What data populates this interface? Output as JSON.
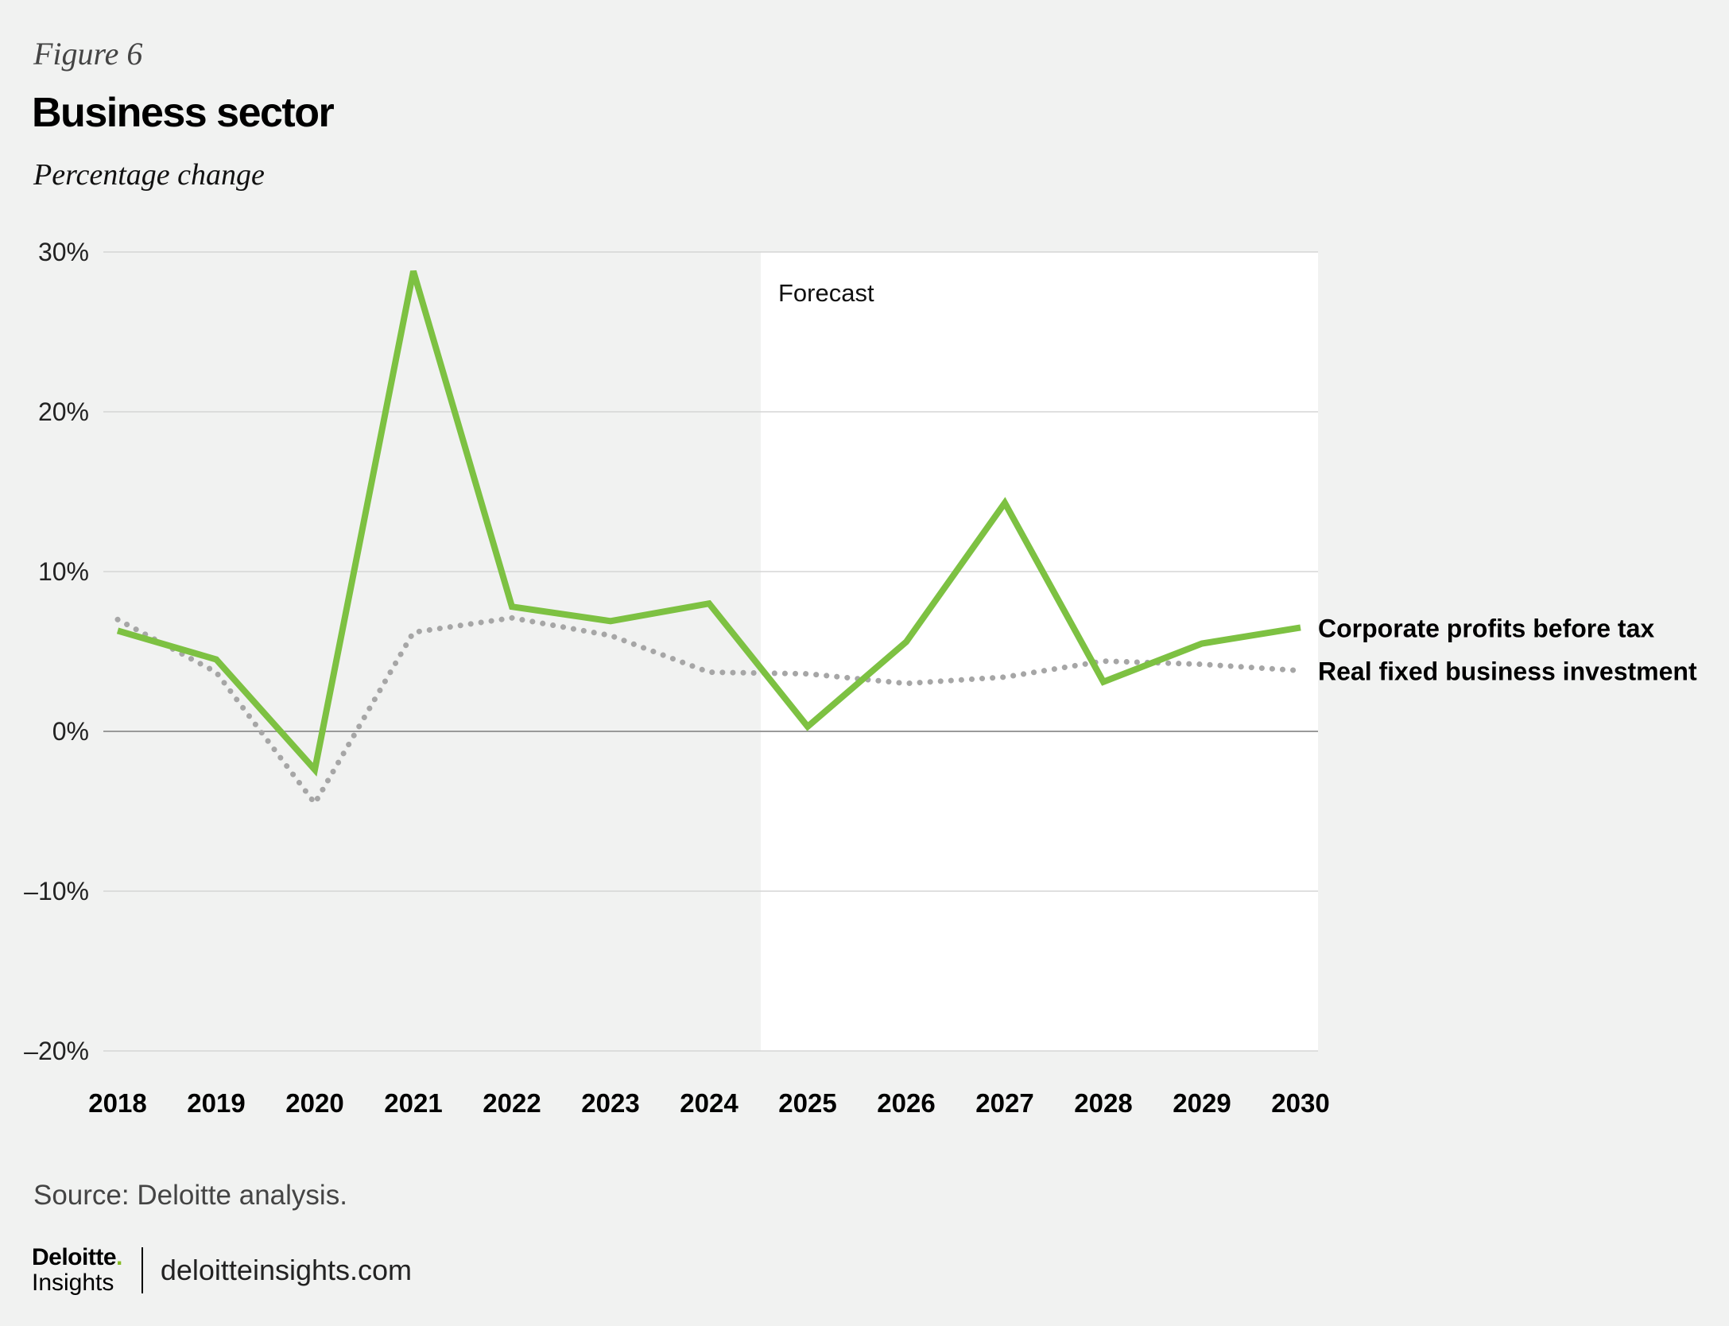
{
  "figure_label": "Figure 6",
  "title": "Business sector",
  "subtitle": "Percentage change",
  "source": "Source: Deloitte analysis.",
  "brand": {
    "logo_word": "Deloitte",
    "logo_dot": ".",
    "logo_sub": "Insights",
    "url": "deloitteinsights.com"
  },
  "colors": {
    "profits": "#7dc142",
    "investment": "#a6a6a6",
    "grid": "#d6d6d6",
    "zero": "#9a9a9a",
    "forecast_bg": "#ffffff"
  },
  "chart_data": {
    "type": "line",
    "title": "Business sector",
    "subtitle": "Percentage change",
    "xlabel": "",
    "ylabel": "",
    "categories": [
      "2018",
      "2019",
      "2020",
      "2021",
      "2022",
      "2023",
      "2024",
      "2025",
      "2026",
      "2027",
      "2028",
      "2029",
      "2030"
    ],
    "ylim": [
      -20,
      30
    ],
    "yticks": [
      30,
      20,
      10,
      0,
      -10,
      -20
    ],
    "ytick_labels": [
      "30%",
      "20%",
      "10%",
      "0%",
      "–10%",
      "–20%"
    ],
    "forecast": {
      "label": "Forecast",
      "start": "2025"
    },
    "series": [
      {
        "name": "Corporate profits before tax",
        "style": "solid",
        "values": [
          6.3,
          4.5,
          -2.4,
          28.8,
          7.8,
          6.9,
          8.0,
          0.3,
          5.6,
          14.3,
          3.1,
          5.5,
          6.5
        ]
      },
      {
        "name": "Real fixed business investment",
        "style": "dotted",
        "values": [
          7.0,
          3.7,
          -4.5,
          6.2,
          7.1,
          6.0,
          3.7,
          3.6,
          3.0,
          3.4,
          4.4,
          4.2,
          3.8
        ]
      }
    ]
  }
}
